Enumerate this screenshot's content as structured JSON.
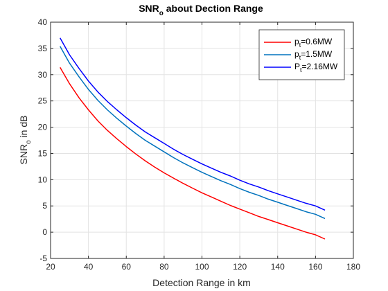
{
  "chart_data": {
    "type": "line",
    "title": {
      "main": "SNR",
      "sub": "o",
      "rest": " about Dection Range"
    },
    "xlabel": "Detection Range in km",
    "ylabel": {
      "main": "SNR",
      "sub": "o",
      "rest": "  in dB"
    },
    "xlim": [
      20,
      180
    ],
    "ylim": [
      -5,
      40
    ],
    "xticks": [
      "20",
      "40",
      "60",
      "80",
      "100",
      "120",
      "140",
      "160",
      "180"
    ],
    "yticks": [
      "-5",
      "0",
      "5",
      "10",
      "15",
      "20",
      "25",
      "30",
      "35",
      "40"
    ],
    "grid": true,
    "legend_position": "top-right",
    "x": [
      25,
      30,
      35,
      40,
      45,
      50,
      55,
      60,
      65,
      70,
      75,
      80,
      85,
      90,
      95,
      100,
      105,
      110,
      115,
      120,
      125,
      130,
      135,
      140,
      145,
      150,
      155,
      160,
      165
    ],
    "series": [
      {
        "legend": {
          "main": "p",
          "sub": "t",
          "rest": "=0.6MW"
        },
        "color": "#ff0000",
        "values": [
          31.4,
          28.3,
          25.6,
          23.3,
          21.2,
          19.4,
          17.8,
          16.3,
          14.9,
          13.6,
          12.4,
          11.3,
          10.3,
          9.3,
          8.4,
          7.5,
          6.7,
          5.9,
          5.1,
          4.4,
          3.7,
          3.0,
          2.4,
          1.8,
          1.2,
          0.6,
          0.0,
          -0.5,
          -1.3
        ]
      },
      {
        "legend": {
          "main": "p",
          "sub": "t",
          "rest": "=1.5MW"
        },
        "color": "#0072bd",
        "values": [
          35.4,
          32.2,
          29.6,
          27.2,
          25.1,
          23.3,
          21.7,
          20.2,
          18.8,
          17.5,
          16.4,
          15.3,
          14.2,
          13.2,
          12.3,
          11.4,
          10.6,
          9.8,
          9.1,
          8.3,
          7.6,
          7.0,
          6.3,
          5.7,
          5.1,
          4.5,
          3.9,
          3.4,
          2.6
        ]
      },
      {
        "legend": {
          "main": "P",
          "sub": "t",
          "rest": "=2.16MW"
        },
        "color": "#0000ff",
        "values": [
          37.0,
          33.8,
          31.2,
          28.8,
          26.7,
          24.9,
          23.3,
          21.8,
          20.4,
          19.1,
          18.0,
          16.9,
          15.8,
          14.8,
          13.9,
          13.0,
          12.2,
          11.4,
          10.7,
          9.9,
          9.2,
          8.6,
          7.9,
          7.3,
          6.7,
          6.1,
          5.5,
          5.0,
          4.2
        ]
      }
    ]
  }
}
